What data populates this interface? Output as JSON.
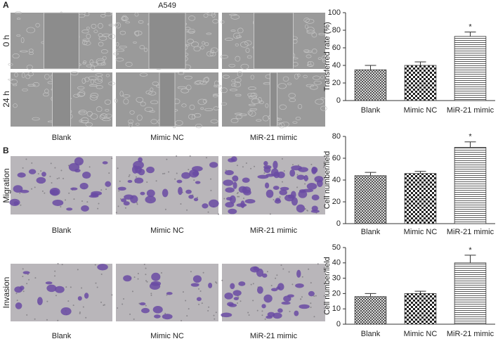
{
  "figure": {
    "panel_a": "A",
    "panel_b": "B",
    "cell_line": "A549",
    "scratch_rows": [
      "0 h",
      "24 h"
    ],
    "scratch_columns": [
      "Blank",
      "Mimic NC",
      "MiR-21 mimic"
    ],
    "transwell_rows": [
      {
        "label": "Migration",
        "columns": [
          "Blank",
          "Mimic NC",
          "MiR-21 mimic"
        ]
      },
      {
        "label": "Invasion",
        "columns": [
          "Blank",
          "Mimic NC",
          "MiR-21 mimic"
        ]
      }
    ]
  },
  "chart_data": [
    {
      "type": "bar",
      "y_label": "Transferred rate (%)",
      "categories": [
        "Blank",
        "Mimic NC",
        "MiR-21 mimic"
      ],
      "values": [
        35,
        40,
        73
      ],
      "errors": [
        5,
        4,
        5
      ],
      "ylim": [
        0,
        100
      ],
      "yticks": [
        0,
        20,
        40,
        60,
        80,
        100
      ],
      "annotation": {
        "text": "*",
        "category": "MiR-21 mimic"
      }
    },
    {
      "type": "bar",
      "y_label": "Cell number/field",
      "categories": [
        "Blank",
        "Mimic NC",
        "MiR-21 mimic"
      ],
      "values": [
        44,
        46,
        70
      ],
      "errors": [
        3,
        2,
        5
      ],
      "ylim": [
        0,
        80
      ],
      "yticks": [
        0,
        20,
        40,
        60,
        80
      ],
      "annotation": {
        "text": "*",
        "category": "MiR-21 mimic"
      }
    },
    {
      "type": "bar",
      "y_label": "Cell number/field",
      "categories": [
        "Blank",
        "Mimic NC",
        "MiR-21 mimic"
      ],
      "values": [
        18,
        20,
        40
      ],
      "errors": [
        2,
        1.5,
        5
      ],
      "ylim": [
        0,
        50
      ],
      "yticks": [
        0,
        10,
        20,
        30,
        40,
        50
      ],
      "annotation": {
        "text": "*",
        "category": "MiR-21 mimic"
      }
    }
  ]
}
